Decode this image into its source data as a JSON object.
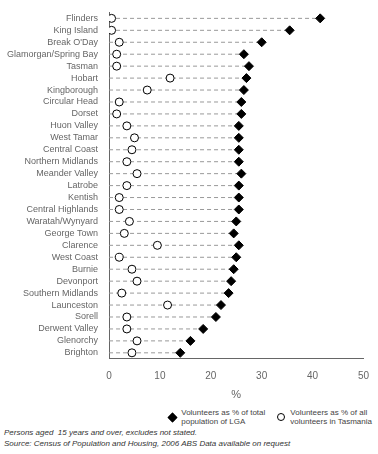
{
  "chart_data": {
    "type": "scatter",
    "orientation": "horizontal",
    "categories": [
      "Flinders",
      "King Island",
      "Break O'Day",
      "Glamorgan/Spring Bay",
      "Tasman",
      "Hobart",
      "Kingborough",
      "Circular Head",
      "Dorset",
      "Huon Valley",
      "West Tamar",
      "Central Coast",
      "Northern Midlands",
      "Meander Valley",
      "Latrobe",
      "Kentish",
      "Central Highlands",
      "Waratah/Wynyard",
      "George Town",
      "Clarence",
      "West Coast",
      "Burnie",
      "Devonport",
      "Southern Midlands",
      "Launceston",
      "Sorell",
      "Derwent Valley",
      "Glenorchy",
      "Brighton"
    ],
    "series": [
      {
        "name": "Volunteers as % of total\npopulation of LGA",
        "color": "#000000",
        "marker": "diamond",
        "values": [
          41.5,
          35.5,
          30.0,
          26.5,
          27.5,
          27.0,
          26.5,
          26.0,
          26.0,
          25.5,
          25.5,
          25.5,
          25.5,
          26.0,
          25.5,
          25.5,
          25.5,
          25.0,
          24.5,
          25.5,
          25.0,
          24.5,
          24.0,
          23.5,
          22.0,
          21.0,
          18.5,
          16.0,
          14.0
        ]
      },
      {
        "name": "Volunteers as % of all\nvolunteers in Tasmania",
        "color": "#ffffff",
        "marker": "circle",
        "values": [
          0.5,
          0.5,
          2.0,
          1.5,
          1.5,
          12.0,
          7.5,
          2.0,
          1.5,
          3.5,
          5.0,
          4.5,
          3.5,
          5.5,
          3.5,
          2.0,
          2.0,
          4.0,
          3.0,
          9.5,
          2.0,
          4.5,
          5.5,
          2.5,
          11.5,
          3.5,
          3.5,
          5.5,
          4.5
        ]
      }
    ],
    "xlabel": "%",
    "xlim": [
      0,
      50
    ],
    "xticks": [
      0,
      10,
      20,
      30,
      40,
      50
    ],
    "grid": false,
    "legend": "lower right",
    "line_style": "dashed",
    "annotations": [
      "Persons aged  15 years and over, excludes not stated.",
      "Source: Census of Population and Housing, 2006 ABS Data available on request"
    ]
  }
}
